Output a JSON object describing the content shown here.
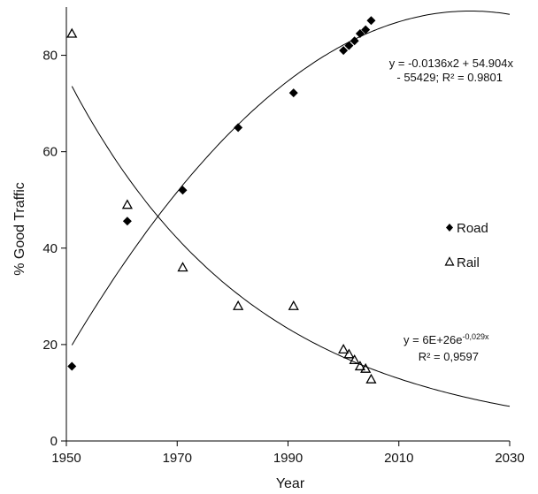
{
  "chart_data": {
    "type": "scatter",
    "xlabel": "Year",
    "ylabel": "% Good Traffic",
    "xlim": [
      1950,
      2030
    ],
    "ylim": [
      0,
      90
    ],
    "xticks": [
      1950,
      1970,
      1990,
      2010,
      2030
    ],
    "yticks": [
      0,
      20,
      40,
      60,
      80
    ],
    "grid": false,
    "legend_position": "right",
    "series": [
      {
        "name": "Road",
        "marker": "filled-diamond",
        "color": "#000000",
        "x": [
          1951,
          1961,
          1971,
          1981,
          1991,
          2000,
          2001,
          2002,
          2003,
          2004,
          2005
        ],
        "y": [
          15.5,
          45.6,
          52,
          65,
          72.2,
          81,
          82,
          83,
          84.5,
          85.3,
          87.2
        ]
      },
      {
        "name": "Rail",
        "marker": "open-triangle",
        "color": "#000000",
        "x": [
          1951,
          1961,
          1971,
          1981,
          1991,
          2000,
          2001,
          2002,
          2003,
          2004,
          2005
        ],
        "y": [
          84.5,
          49,
          36,
          28,
          28,
          19,
          18,
          16.8,
          15.5,
          15,
          12.8
        ]
      }
    ],
    "fits": [
      {
        "series": "Road",
        "kind": "polynomial",
        "equation_line1": "y = -0.0136x2 + 54.904x",
        "equation_line2": "- 55429; R² = 0.9801"
      },
      {
        "series": "Rail",
        "kind": "exponential",
        "equation_base": "y = 6E+26e",
        "equation_exponent": "-0,029x",
        "equation_line2": "R² = 0,9597"
      }
    ]
  }
}
